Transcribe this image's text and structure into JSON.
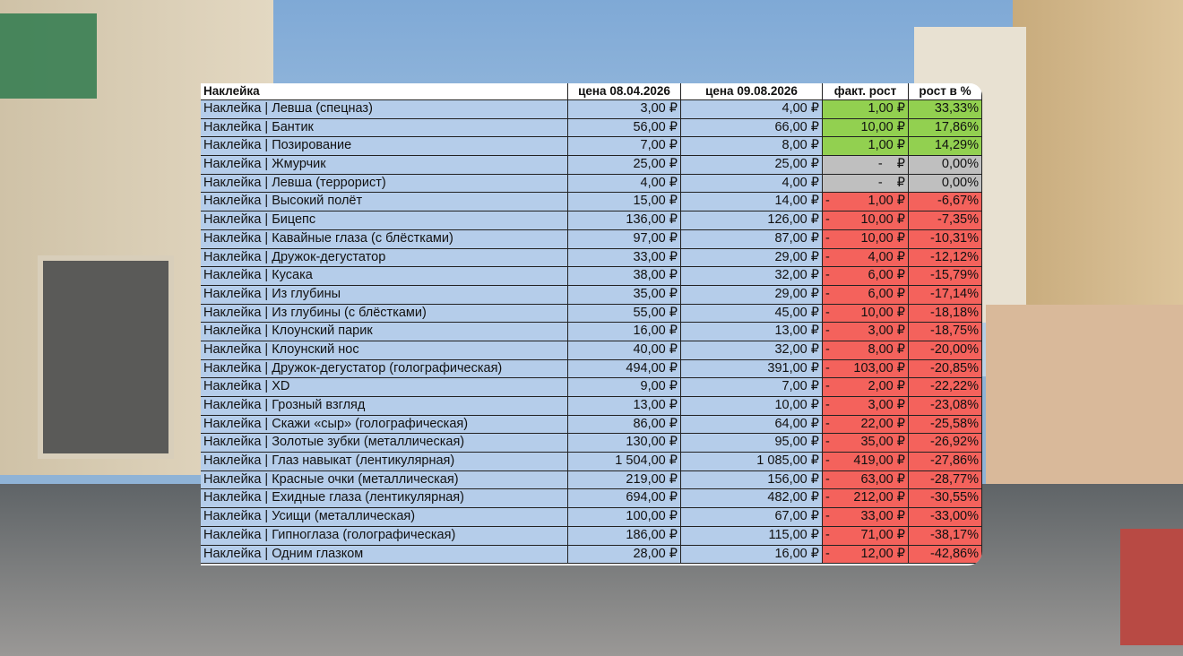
{
  "table": {
    "header": [
      "Наклейка",
      "цена 08.04.2026",
      "цена 09.08.2026",
      "факт. рост",
      "рост в %"
    ],
    "rows": [
      {
        "name": "Наклейка | Левша (спецназ)",
        "price1": "3,00 ₽",
        "price2": "4,00 ₽",
        "growth": "1,00 ₽",
        "pct": "33,33%",
        "color": "#92d050"
      },
      {
        "name": "Наклейка | Бантик",
        "price1": "56,00 ₽",
        "price2": "66,00 ₽",
        "growth": "10,00 ₽",
        "pct": "17,86%",
        "color": "#92d050"
      },
      {
        "name": "Наклейка | Позирование",
        "price1": "7,00 ₽",
        "price2": "8,00 ₽",
        "growth": "1,00 ₽",
        "pct": "14,29%",
        "color": "#92d050"
      },
      {
        "name": "Наклейка | Жмурчик",
        "price1": "25,00 ₽",
        "price2": "25,00 ₽",
        "growth": "-    ₽",
        "pct": "0,00%",
        "color": "#bfbfbf"
      },
      {
        "name": "Наклейка | Левша (террорист)",
        "price1": "4,00 ₽",
        "price2": "4,00 ₽",
        "growth": "-    ₽",
        "pct": "0,00%",
        "color": "#bfbfbf"
      },
      {
        "name": "Наклейка | Высокий полёт",
        "price1": "15,00 ₽",
        "price2": "14,00 ₽",
        "sign": "-",
        "growth": "1,00 ₽",
        "pct": "-6,67%",
        "color": "#f4625c"
      },
      {
        "name": "Наклейка | Бицепс",
        "price1": "136,00 ₽",
        "price2": "126,00 ₽",
        "sign": "-",
        "growth": "10,00 ₽",
        "pct": "-7,35%",
        "color": "#f4625c"
      },
      {
        "name": "Наклейка | Кавайные глаза (с блёстками)",
        "price1": "97,00 ₽",
        "price2": "87,00 ₽",
        "sign": "-",
        "growth": "10,00 ₽",
        "pct": "-10,31%",
        "color": "#f4625c"
      },
      {
        "name": "Наклейка | Дружок-дегустатор",
        "price1": "33,00 ₽",
        "price2": "29,00 ₽",
        "sign": "-",
        "growth": "4,00 ₽",
        "pct": "-12,12%",
        "color": "#f4625c"
      },
      {
        "name": "Наклейка | Кусака",
        "price1": "38,00 ₽",
        "price2": "32,00 ₽",
        "sign": "-",
        "growth": "6,00 ₽",
        "pct": "-15,79%",
        "color": "#f4625c"
      },
      {
        "name": "Наклейка | Из глубины",
        "price1": "35,00 ₽",
        "price2": "29,00 ₽",
        "sign": "-",
        "growth": "6,00 ₽",
        "pct": "-17,14%",
        "color": "#f4625c"
      },
      {
        "name": "Наклейка | Из глубины (с блёстками)",
        "price1": "55,00 ₽",
        "price2": "45,00 ₽",
        "sign": "-",
        "growth": "10,00 ₽",
        "pct": "-18,18%",
        "color": "#f4625c"
      },
      {
        "name": "Наклейка | Клоунский парик",
        "price1": "16,00 ₽",
        "price2": "13,00 ₽",
        "sign": "-",
        "growth": "3,00 ₽",
        "pct": "-18,75%",
        "color": "#f4625c"
      },
      {
        "name": "Наклейка | Клоунский нос",
        "price1": "40,00 ₽",
        "price2": "32,00 ₽",
        "sign": "-",
        "growth": "8,00 ₽",
        "pct": "-20,00%",
        "color": "#f4625c"
      },
      {
        "name": "Наклейка | Дружок-дегустатор (голографическая)",
        "price1": "494,00 ₽",
        "price2": "391,00 ₽",
        "sign": "-",
        "growth": "103,00 ₽",
        "pct": "-20,85%",
        "color": "#f4625c"
      },
      {
        "name": "Наклейка | XD",
        "price1": "9,00 ₽",
        "price2": "7,00 ₽",
        "sign": "-",
        "growth": "2,00 ₽",
        "pct": "-22,22%",
        "color": "#f4625c"
      },
      {
        "name": "Наклейка | Грозный взгляд",
        "price1": "13,00 ₽",
        "price2": "10,00 ₽",
        "sign": "-",
        "growth": "3,00 ₽",
        "pct": "-23,08%",
        "color": "#f4625c"
      },
      {
        "name": "Наклейка | Скажи «сыр» (голографическая)",
        "price1": "86,00 ₽",
        "price2": "64,00 ₽",
        "sign": "-",
        "growth": "22,00 ₽",
        "pct": "-25,58%",
        "color": "#f4625c"
      },
      {
        "name": "Наклейка | Золотые зубки (металлическая)",
        "price1": "130,00 ₽",
        "price2": "95,00 ₽",
        "sign": "-",
        "growth": "35,00 ₽",
        "pct": "-26,92%",
        "color": "#f4625c"
      },
      {
        "name": "Наклейка | Глаз навыкат (лентикулярная)",
        "price1": "1 504,00 ₽",
        "price2": "1 085,00 ₽",
        "sign": "-",
        "growth": "419,00 ₽",
        "pct": "-27,86%",
        "color": "#f4625c"
      },
      {
        "name": "Наклейка | Красные очки (металлическая)",
        "price1": "219,00 ₽",
        "price2": "156,00 ₽",
        "sign": "-",
        "growth": "63,00 ₽",
        "pct": "-28,77%",
        "color": "#f4625c"
      },
      {
        "name": "Наклейка | Ехидные глаза (лентикулярная)",
        "price1": "694,00 ₽",
        "price2": "482,00 ₽",
        "sign": "-",
        "growth": "212,00 ₽",
        "pct": "-30,55%",
        "color": "#f4625c"
      },
      {
        "name": "Наклейка | Усищи (металлическая)",
        "price1": "100,00 ₽",
        "price2": "67,00 ₽",
        "sign": "-",
        "growth": "33,00 ₽",
        "pct": "-33,00%",
        "color": "#f4625c"
      },
      {
        "name": "Наклейка | Гипноглаза (голографическая)",
        "price1": "186,00 ₽",
        "price2": "115,00 ₽",
        "sign": "-",
        "growth": "71,00 ₽",
        "pct": "-38,17%",
        "color": "#f4625c"
      },
      {
        "name": "Наклейка | Одним глазком",
        "price1": "28,00 ₽",
        "price2": "16,00 ₽",
        "sign": "-",
        "growth": "12,00 ₽",
        "pct": "-42,86%",
        "color": "#f4625c"
      }
    ]
  }
}
